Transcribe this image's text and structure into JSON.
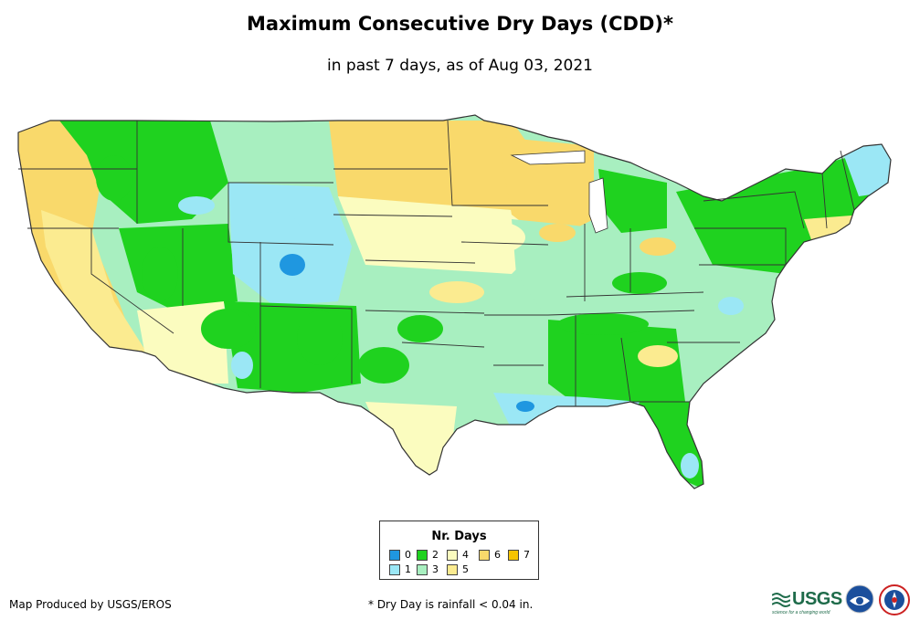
{
  "header": {
    "title": "Maximum Consecutive Dry Days (CDD)*",
    "subtitle": "in past 7 days, as of Aug 03, 2021"
  },
  "legend": {
    "title": "Nr. Days",
    "items": [
      {
        "label": "0",
        "color": "#1f97e0"
      },
      {
        "label": "1",
        "color": "#9be7f5"
      },
      {
        "label": "2",
        "color": "#1fd21f"
      },
      {
        "label": "3",
        "color": "#a8efc0"
      },
      {
        "label": "4",
        "color": "#fbfcbf"
      },
      {
        "label": "5",
        "color": "#fbeb90"
      },
      {
        "label": "6",
        "color": "#f9d96b"
      },
      {
        "label": "7",
        "color": "#f6c300"
      }
    ]
  },
  "footer": {
    "credit": "Map Produced by USGS/EROS",
    "footnote": "* Dry Day is rainfall < 0.04 in.",
    "usgs_text": "USGS",
    "usgs_tagline": "science for a changing world"
  },
  "colors": {
    "ocean": "#ffffff",
    "state_border": "#333333",
    "usgs_green": "#1e6b4a",
    "noaa_blue": "#1b4f9c"
  },
  "regions": [
    {
      "name": "pacific-coast",
      "days": 6
    },
    {
      "name": "california-central",
      "days": 5
    },
    {
      "name": "northern-rockies",
      "days": 2
    },
    {
      "name": "great-basin",
      "days": 2
    },
    {
      "name": "colorado-rockies",
      "days": 1
    },
    {
      "name": "southwest-desert",
      "days": 4
    },
    {
      "name": "new-mexico",
      "days": 2
    },
    {
      "name": "northern-plains",
      "days": 6
    },
    {
      "name": "central-plains",
      "days": 4
    },
    {
      "name": "southern-plains",
      "days": 3
    },
    {
      "name": "upper-midwest",
      "days": 6
    },
    {
      "name": "midwest",
      "days": 3
    },
    {
      "name": "ohio-valley",
      "days": 3
    },
    {
      "name": "great-lakes-michigan",
      "days": 2
    },
    {
      "name": "northeast",
      "days": 2
    },
    {
      "name": "maine",
      "days": 1
    },
    {
      "name": "southern-new-england",
      "days": 5
    },
    {
      "name": "mid-atlantic",
      "days": 3
    },
    {
      "name": "carolinas",
      "days": 3
    },
    {
      "name": "southeast",
      "days": 2
    },
    {
      "name": "gulf-coast",
      "days": 1
    },
    {
      "name": "florida",
      "days": 2
    },
    {
      "name": "south-texas",
      "days": 4
    }
  ]
}
